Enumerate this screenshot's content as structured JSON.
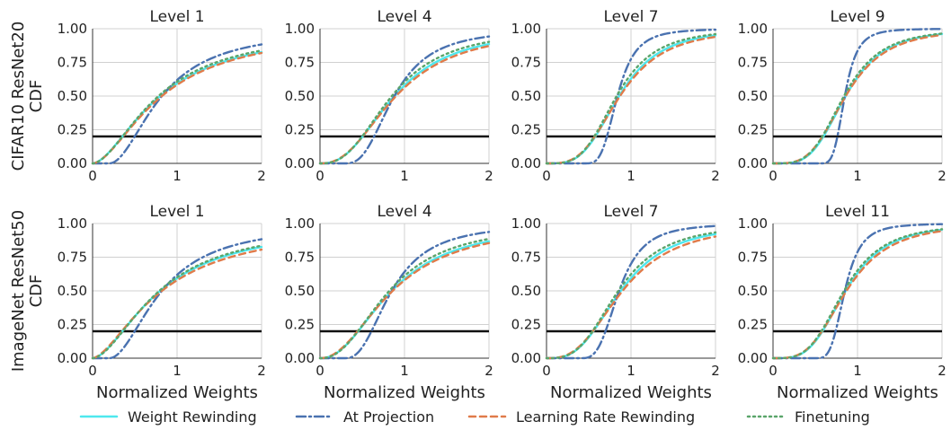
{
  "chart_data": {
    "type": "line",
    "grid": true,
    "xlim": [
      0,
      2
    ],
    "ylim": [
      0,
      1
    ],
    "x_ticks": [
      "0",
      "1",
      "2"
    ],
    "y_ticks": [
      "0.00",
      "0.25",
      "0.50",
      "0.75",
      "1.00"
    ],
    "xlabel": "Normalized Weights",
    "reference_line_y": 0.2,
    "legend_position": "bottom",
    "rows": [
      {
        "ylabel": [
          "CIFAR10 ResNet20",
          "CDF"
        ],
        "panels": [
          {
            "title": "Level 1",
            "curves": {
              "weight_rewinding": {
                "k": 1.7,
                "c": 0.8,
                "s": 0
              },
              "at_projection": {
                "k": 1.9,
                "c": 0.82,
                "s": 0.2
              },
              "learning_rate_rewinding": {
                "k": 1.7,
                "c": 0.82,
                "s": 0
              },
              "finetuning": {
                "k": 1.75,
                "c": 0.78,
                "s": 0
              }
            }
          },
          {
            "title": "Level 4",
            "curves": {
              "weight_rewinding": {
                "k": 2.5,
                "c": 0.88,
                "s": 0
              },
              "at_projection": {
                "k": 2.6,
                "c": 0.88,
                "s": 0.3
              },
              "learning_rate_rewinding": {
                "k": 2.4,
                "c": 0.9,
                "s": 0
              },
              "finetuning": {
                "k": 2.6,
                "c": 0.85,
                "s": 0
              }
            }
          },
          {
            "title": "Level 7",
            "curves": {
              "weight_rewinding": {
                "k": 3.5,
                "c": 0.86,
                "s": 0
              },
              "at_projection": {
                "k": 3.6,
                "c": 0.84,
                "s": 0.45
              },
              "learning_rate_rewinding": {
                "k": 3.3,
                "c": 0.87,
                "s": 0
              },
              "finetuning": {
                "k": 3.6,
                "c": 0.83,
                "s": 0
              }
            }
          },
          {
            "title": "Level 9",
            "curves": {
              "weight_rewinding": {
                "k": 3.8,
                "c": 0.86,
                "s": 0
              },
              "at_projection": {
                "k": 4.0,
                "c": 0.85,
                "s": 0.55
              },
              "learning_rate_rewinding": {
                "k": 3.6,
                "c": 0.86,
                "s": 0
              },
              "finetuning": {
                "k": 3.8,
                "c": 0.84,
                "s": 0
              }
            }
          }
        ]
      },
      {
        "ylabel": [
          "ImageNet ResNet50",
          "CDF"
        ],
        "panels": [
          {
            "title": "Level 1",
            "curves": {
              "weight_rewinding": {
                "k": 1.7,
                "c": 0.8,
                "s": 0
              },
              "at_projection": {
                "k": 1.9,
                "c": 0.82,
                "s": 0.2
              },
              "learning_rate_rewinding": {
                "k": 1.6,
                "c": 0.82,
                "s": 0
              },
              "finetuning": {
                "k": 1.75,
                "c": 0.79,
                "s": 0
              }
            }
          },
          {
            "title": "Level 4",
            "curves": {
              "weight_rewinding": {
                "k": 2.2,
                "c": 0.85,
                "s": 0
              },
              "at_projection": {
                "k": 2.4,
                "c": 0.85,
                "s": 0.3
              },
              "learning_rate_rewinding": {
                "k": 2.1,
                "c": 0.86,
                "s": 0
              },
              "finetuning": {
                "k": 2.3,
                "c": 0.82,
                "s": 0
              }
            }
          },
          {
            "title": "Level 7",
            "curves": {
              "weight_rewinding": {
                "k": 3.0,
                "c": 0.88,
                "s": 0
              },
              "at_projection": {
                "k": 3.2,
                "c": 0.86,
                "s": 0.4
              },
              "learning_rate_rewinding": {
                "k": 2.8,
                "c": 0.9,
                "s": 0
              },
              "finetuning": {
                "k": 3.1,
                "c": 0.85,
                "s": 0
              }
            }
          },
          {
            "title": "Level 11",
            "curves": {
              "weight_rewinding": {
                "k": 3.6,
                "c": 0.86,
                "s": 0
              },
              "at_projection": {
                "k": 3.7,
                "c": 0.85,
                "s": 0.5
              },
              "learning_rate_rewinding": {
                "k": 3.4,
                "c": 0.87,
                "s": 0
              },
              "finetuning": {
                "k": 3.6,
                "c": 0.84,
                "s": 0
              }
            }
          }
        ]
      }
    ],
    "series": [
      {
        "key": "weight_rewinding",
        "name": "Weight Rewinding",
        "color": "#4ee8ee",
        "style": "solid"
      },
      {
        "key": "at_projection",
        "name": "At Projection",
        "color": "#4a72b0",
        "style": "dashdot"
      },
      {
        "key": "learning_rate_rewinding",
        "name": "Learning Rate Rewinding",
        "color": "#e07b4a",
        "style": "dashed"
      },
      {
        "key": "finetuning",
        "name": "Finetuning",
        "color": "#5aa56a",
        "style": "dotted"
      }
    ]
  }
}
